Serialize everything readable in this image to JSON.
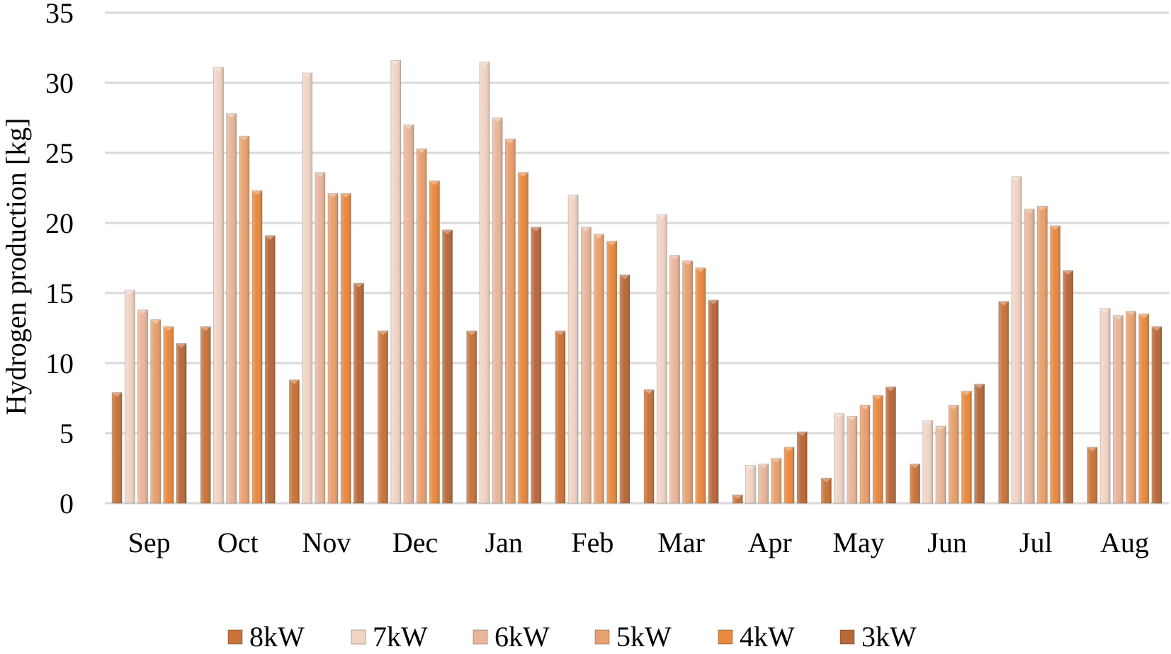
{
  "chart_data": {
    "type": "bar",
    "title": "",
    "xlabel": "",
    "ylabel": "Hydrogen production [kg]",
    "ylim": [
      0,
      35
    ],
    "yticks": [
      "0",
      "5",
      "10",
      "15",
      "20",
      "25",
      "30",
      "35"
    ],
    "grid": true,
    "legend_position": "bottom",
    "categories": [
      "Sep",
      "Oct",
      "Nov",
      "Dec",
      "Jan",
      "Feb",
      "Mar",
      "Apr",
      "May",
      "Jun",
      "Jul",
      "Aug"
    ],
    "series": [
      {
        "name": "8kW",
        "color": "#c8743a",
        "values": [
          7.9,
          12.6,
          8.8,
          12.3,
          12.3,
          12.3,
          8.1,
          0.6,
          1.8,
          2.8,
          14.4,
          4.0
        ]
      },
      {
        "name": "7kW",
        "color": "#f0d4c4",
        "values": [
          15.2,
          31.1,
          30.7,
          31.6,
          31.5,
          22.0,
          20.6,
          2.7,
          6.4,
          5.9,
          23.3,
          13.9
        ]
      },
      {
        "name": "6kW",
        "color": "#e8b69a",
        "values": [
          13.8,
          27.8,
          23.6,
          27.0,
          27.5,
          19.7,
          17.7,
          2.8,
          6.2,
          5.5,
          21.0,
          13.4
        ]
      },
      {
        "name": "5kW",
        "color": "#e8a06e",
        "values": [
          13.1,
          26.2,
          22.1,
          25.3,
          26.0,
          19.2,
          17.3,
          3.2,
          7.0,
          7.0,
          21.2,
          13.7
        ]
      },
      {
        "name": "4kW",
        "color": "#e8893e",
        "values": [
          12.6,
          22.3,
          22.1,
          23.0,
          23.6,
          18.7,
          16.8,
          4.0,
          7.7,
          8.0,
          19.8,
          13.5
        ]
      },
      {
        "name": "3kW",
        "color": "#b8693a",
        "values": [
          11.4,
          19.1,
          15.7,
          19.5,
          19.7,
          16.3,
          14.5,
          5.1,
          8.3,
          8.5,
          16.6,
          12.6
        ]
      }
    ]
  }
}
